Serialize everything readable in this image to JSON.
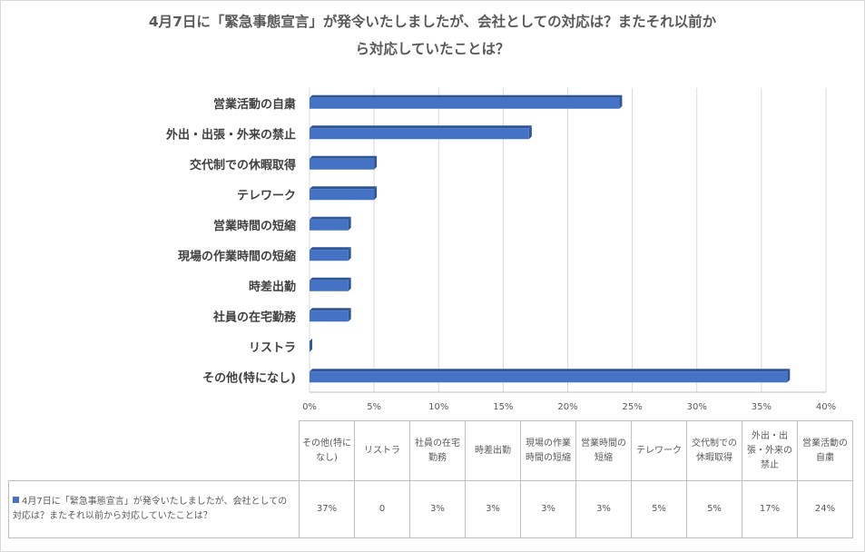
{
  "title_line1": "4月7日に「緊急事態宣言」が発令いたしましたが、会社としての対応は？またそれ以前か",
  "title_line2": "ら対応していたことは？",
  "colors": {
    "bar": "#4472c4",
    "bar_dark": "#2f5597",
    "grid": "#d9d9d9",
    "text": "#404040"
  },
  "chart_data": {
    "type": "bar",
    "orientation": "horizontal",
    "categories": [
      "営業活動の自粛",
      "外出・出張・外来の禁止",
      "交代制での休暇取得",
      "テレワーク",
      "営業時間の短縮",
      "現場の作業時間の短縮",
      "時差出勤",
      "社員の在宅勤務",
      "リストラ",
      "その他(特になし)"
    ],
    "values": [
      24,
      17,
      5,
      5,
      3,
      3,
      3,
      3,
      0,
      37
    ],
    "value_labels": [
      "24%",
      "17%",
      "5%",
      "5%",
      "3%",
      "3%",
      "3%",
      "3%",
      "0",
      "37%"
    ],
    "xlim": [
      0,
      40
    ],
    "xticks": [
      "0%",
      "5%",
      "10%",
      "15%",
      "20%",
      "25%",
      "30%",
      "35%",
      "40%"
    ],
    "grid": true,
    "legend": "data table"
  },
  "table": {
    "series_label": "4月7日に「緊急事態宣言」が発令いたしましたが、会社としての対応は？またそれ以前から対応していたことは？",
    "headers": [
      "その他(特になし)",
      "リストラ",
      "社員の在宅勤務",
      "時差出勤",
      "現場の作業時間の短縮",
      "営業時間の短縮",
      "テレワーク",
      "交代制での休暇取得",
      "外出・出張・外来の禁止",
      "営業活動の自粛"
    ],
    "values": [
      "37%",
      "0",
      "3%",
      "3%",
      "3%",
      "3%",
      "5%",
      "5%",
      "17%",
      "24%"
    ]
  }
}
